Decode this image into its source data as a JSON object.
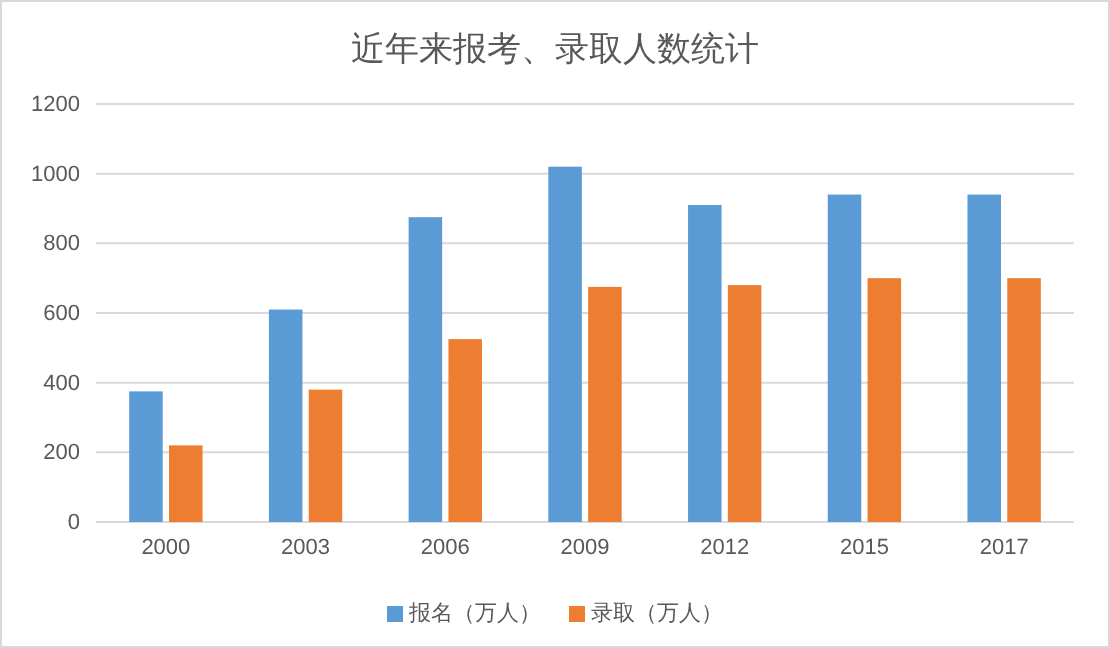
{
  "chart_data": {
    "type": "bar",
    "title": "近年来报考、录取人数统计",
    "categories": [
      "2000",
      "2003",
      "2006",
      "2009",
      "2012",
      "2015",
      "2017"
    ],
    "series": [
      {
        "name": "报名（万人）",
        "color": "#5b9bd5",
        "values": [
          375,
          610,
          875,
          1020,
          910,
          940,
          940
        ]
      },
      {
        "name": "录取（万人）",
        "color": "#ed7d31",
        "values": [
          220,
          380,
          525,
          675,
          680,
          700,
          700
        ]
      }
    ],
    "ylim": [
      0,
      1200
    ],
    "yticks": [
      0,
      200,
      400,
      600,
      800,
      1000,
      1200
    ],
    "grid": "y",
    "legend": "bottom"
  }
}
